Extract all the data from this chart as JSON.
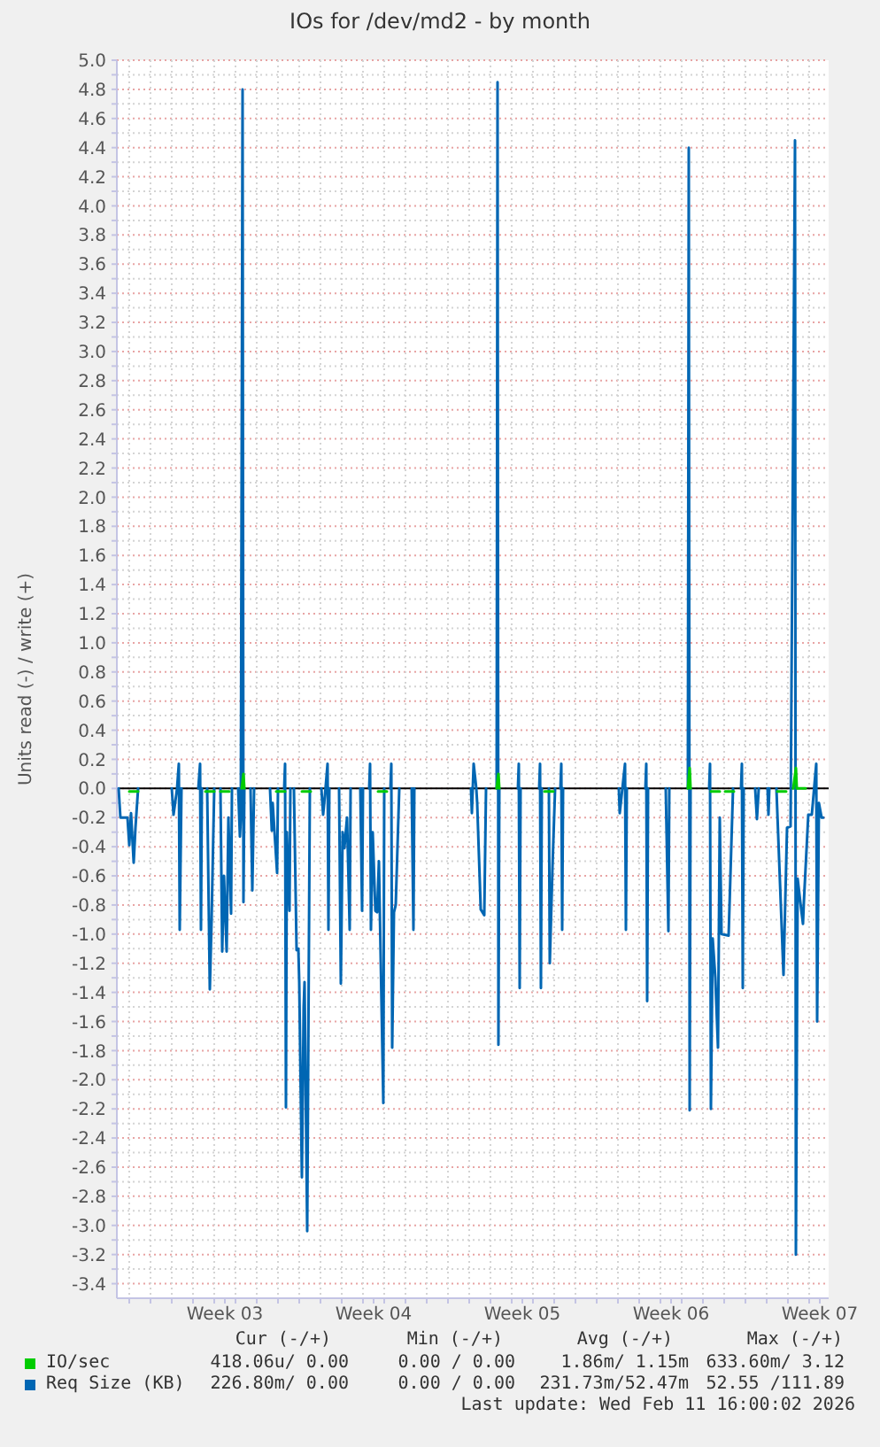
{
  "chart_data": {
    "type": "line",
    "title": "IOs for /dev/md2 - by month",
    "ylabel": "Units read (-) / write (+)",
    "xlim": [
      "2026-01-09T10:00",
      "2026-02-11T22:00"
    ],
    "xticks": [
      {
        "value": "2026-01-10T00:00",
        "label": null
      },
      {
        "value": "2026-01-11T00:00",
        "label": null
      },
      {
        "value": "2026-01-12T00:00",
        "label": null
      },
      {
        "value": "2026-01-13T00:00",
        "label": null
      },
      {
        "value": "2026-01-14T00:00",
        "label": null
      },
      {
        "value": "2026-01-14T12:00",
        "label": "Week 03"
      },
      {
        "value": "2026-01-15T00:00",
        "label": null
      },
      {
        "value": "2026-01-16T00:00",
        "label": null
      },
      {
        "value": "2026-01-17T00:00",
        "label": null
      },
      {
        "value": "2026-01-18T00:00",
        "label": null
      },
      {
        "value": "2026-01-19T00:00",
        "label": null
      },
      {
        "value": "2026-01-20T00:00",
        "label": null
      },
      {
        "value": "2026-01-21T00:00",
        "label": null
      },
      {
        "value": "2026-01-21T12:00",
        "label": "Week 04"
      },
      {
        "value": "2026-01-22T00:00",
        "label": null
      },
      {
        "value": "2026-01-23T00:00",
        "label": null
      },
      {
        "value": "2026-01-24T00:00",
        "label": null
      },
      {
        "value": "2026-01-25T00:00",
        "label": null
      },
      {
        "value": "2026-01-26T00:00",
        "label": null
      },
      {
        "value": "2026-01-27T00:00",
        "label": null
      },
      {
        "value": "2026-01-28T00:00",
        "label": null
      },
      {
        "value": "2026-01-28T12:00",
        "label": "Week 05"
      },
      {
        "value": "2026-01-29T00:00",
        "label": null
      },
      {
        "value": "2026-01-30T00:00",
        "label": null
      },
      {
        "value": "2026-01-31T00:00",
        "label": null
      },
      {
        "value": "2026-02-01T00:00",
        "label": null
      },
      {
        "value": "2026-02-02T00:00",
        "label": null
      },
      {
        "value": "2026-02-03T00:00",
        "label": null
      },
      {
        "value": "2026-02-04T00:00",
        "label": null
      },
      {
        "value": "2026-02-04T12:00",
        "label": "Week 06"
      },
      {
        "value": "2026-02-05T00:00",
        "label": null
      },
      {
        "value": "2026-02-06T00:00",
        "label": null
      },
      {
        "value": "2026-02-07T00:00",
        "label": null
      },
      {
        "value": "2026-02-08T00:00",
        "label": null
      },
      {
        "value": "2026-02-09T00:00",
        "label": null
      },
      {
        "value": "2026-02-10T00:00",
        "label": null
      },
      {
        "value": "2026-02-11T00:00",
        "label": null
      },
      {
        "value": "2026-02-11T12:00",
        "label": "Week 07"
      }
    ],
    "ylim": [
      -3.5,
      5
    ],
    "yticks": [
      -3.4,
      {
        "value": -3.3,
        "label": null
      },
      -3.2,
      {
        "value": -3.1,
        "label": null
      },
      {
        "value": -3,
        "label": "-3.0"
      },
      {
        "value": -2.9,
        "label": null
      },
      -2.8,
      {
        "value": -2.7,
        "label": null
      },
      -2.6,
      {
        "value": -2.5,
        "label": null
      },
      -2.4,
      {
        "value": -2.3,
        "label": null
      },
      -2.2,
      {
        "value": -2.1,
        "label": null
      },
      {
        "value": -2,
        "label": "-2.0"
      },
      {
        "value": -1.9,
        "label": null
      },
      -1.8,
      {
        "value": -1.7,
        "label": null
      },
      -1.6,
      {
        "value": -1.5,
        "label": null
      },
      -1.4,
      {
        "value": -1.3,
        "label": null
      },
      -1.2,
      {
        "value": -1.1,
        "label": null
      },
      {
        "value": -1,
        "label": "-1.0"
      },
      {
        "value": -0.9,
        "label": null
      },
      -0.8,
      {
        "value": -0.7,
        "label": null
      },
      -0.6,
      {
        "value": -0.5,
        "label": null
      },
      -0.4,
      {
        "value": -0.3,
        "label": null
      },
      -0.2,
      {
        "value": -0.1,
        "label": null
      },
      {
        "value": 0,
        "label": "0.0"
      },
      {
        "value": 0.1,
        "label": null
      },
      0.2,
      {
        "value": 0.3,
        "label": null
      },
      0.4,
      {
        "value": 0.5,
        "label": null
      },
      0.6,
      {
        "value": 0.7,
        "label": null
      },
      0.8,
      {
        "value": 0.9,
        "label": null
      },
      {
        "value": 1,
        "label": "1.0"
      },
      {
        "value": 1.1,
        "label": null
      },
      1.2,
      {
        "value": 1.3,
        "label": null
      },
      1.4,
      {
        "value": 1.5,
        "label": null
      },
      1.6,
      {
        "value": 1.7,
        "label": null
      },
      1.8,
      {
        "value": 1.9,
        "label": null
      },
      {
        "value": 2,
        "label": "2.0"
      },
      {
        "value": 2.1,
        "label": null
      },
      2.2,
      {
        "value": 2.3,
        "label": null
      },
      2.4,
      {
        "value": 2.5,
        "label": null
      },
      2.6,
      {
        "value": 2.7,
        "label": null
      },
      2.8,
      {
        "value": 2.9,
        "label": null
      },
      {
        "value": 3,
        "label": "3.0"
      },
      {
        "value": 3.1,
        "label": null
      },
      3.2,
      {
        "value": 3.3,
        "label": null
      },
      3.4,
      {
        "value": 3.5,
        "label": null
      },
      3.6,
      {
        "value": 3.7,
        "label": null
      },
      3.8,
      {
        "value": 3.9,
        "label": null
      },
      {
        "value": 4,
        "label": "4.0"
      },
      {
        "value": 4.1,
        "label": null
      },
      4.2,
      {
        "value": 4.3,
        "label": null
      },
      4.4,
      {
        "value": 4.5,
        "label": null
      },
      4.6,
      {
        "value": 4.7,
        "label": null
      },
      4.8,
      {
        "value": 4.9,
        "label": null
      },
      {
        "value": 5,
        "label": "5.0"
      }
    ],
    "grid": true,
    "legend": "bottom",
    "ref_lines": [
      {
        "axis": "y",
        "value": 0,
        "color": "#000000"
      }
    ],
    "series": [
      {
        "name": "IO/sec",
        "color": "#00cc00",
        "x": [
          "2026-01-10T00:00",
          "2026-01-10T10:00",
          "2026-01-11T10:00",
          "2026-01-13T14:00",
          "2026-01-14T00:00",
          "2026-01-14T02:00",
          "2026-01-14T07:00",
          "2026-01-14T17:00",
          "2026-01-15T00:00",
          "2026-01-15T07:00",
          "2026-01-15T09:00",
          "2026-01-15T10:00",
          "2026-01-16T02:00",
          "2026-01-16T22:00",
          "2026-01-17T08:00",
          "2026-01-17T18:00",
          "2026-01-18T03:00",
          "2026-01-18T13:00",
          "2026-01-19T18:00",
          "2026-01-21T17:00",
          "2026-01-22T03:00",
          "2026-01-24T18:00",
          "2026-01-27T07:00",
          "2026-01-27T09:00",
          "2026-01-27T10:00",
          "2026-01-28T12:00",
          "2026-01-29T13:00",
          "2026-01-29T23:00",
          "2026-02-02T02:00",
          "2026-02-05T07:00",
          "2026-02-05T09:00",
          "2026-02-05T10:00",
          "2026-02-05T20:00",
          "2026-02-06T09:00",
          "2026-02-06T19:00",
          "2026-02-07T00:00",
          "2026-02-07T01:00",
          "2026-02-07T11:00",
          "2026-02-08T18:00",
          "2026-02-09T12:00",
          "2026-02-09T22:00",
          "2026-02-10T02:00",
          "2026-02-10T06:00",
          "2026-02-10T09:00",
          "2026-02-10T10:00",
          "2026-02-10T20:00"
        ],
        "values": [
          -0.02,
          -0.02,
          null,
          -0.02,
          -0.02,
          null,
          -0.02,
          -0.02,
          null,
          0,
          0.1,
          0,
          null,
          -0.02,
          -0.02,
          null,
          -0.02,
          -0.02,
          null,
          -0.02,
          -0.02,
          null,
          0,
          0.1,
          0,
          null,
          -0.02,
          -0.02,
          null,
          0,
          0.14,
          0,
          null,
          -0.02,
          -0.02,
          null,
          -0.02,
          -0.02,
          null,
          -0.02,
          -0.02,
          null,
          0,
          0.14,
          0,
          0
        ]
      },
      {
        "name": "Req Size (KB)",
        "color": "#0066b3",
        "x": [
          "2026-01-09T12:00",
          "2026-01-09T14:00",
          "2026-01-09T22:00",
          "2026-01-10T00:00",
          "2026-01-10T02:00",
          "2026-01-10T05:00",
          "2026-01-10T07:00",
          "2026-01-10T10:00",
          "2026-01-11T06:00",
          "2026-01-12T00:00",
          "2026-01-12T02:00",
          "2026-01-12T06:00",
          "2026-01-12T08:00",
          "2026-01-12T09:00",
          "2026-01-12T11:00",
          "2026-01-12T16:00",
          "2026-01-13T06:00",
          "2026-01-13T08:00",
          "2026-01-13T09:00",
          "2026-01-13T10:00",
          "2026-01-13T13:00",
          "2026-01-13T16:00",
          "2026-01-13T19:00",
          "2026-01-13T21:00",
          "2026-01-14T00:00",
          "2026-01-14T04:00",
          "2026-01-14T07:00",
          "2026-01-14T09:00",
          "2026-01-14T11:00",
          "2026-01-14T14:00",
          "2026-01-14T16:00",
          "2026-01-14T19:00",
          "2026-01-14T20:00",
          "2026-01-15T00:00",
          "2026-01-15T03:00",
          "2026-01-15T05:00",
          "2026-01-15T06:00",
          "2026-01-15T08:00",
          "2026-01-15T09:00",
          "2026-01-15T10:00",
          "2026-01-15T14:00",
          "2026-01-15T17:00",
          "2026-01-15T19:00",
          "2026-01-15T21:00",
          "2026-01-16T06:00",
          "2026-01-16T15:00",
          "2026-01-16T17:00",
          "2026-01-16T18:00",
          "2026-01-16T23:00",
          "2026-01-17T00:00",
          "2026-01-17T04:00",
          "2026-01-17T07:00",
          "2026-01-17T08:00",
          "2026-01-17T09:00",
          "2026-01-17T10:00",
          "2026-01-17T13:00",
          "2026-01-17T14:00",
          "2026-01-17T16:00",
          "2026-01-17T18:00",
          "2026-01-17T21:00",
          "2026-01-17T23:00",
          "2026-01-18T00:00",
          "2026-01-18T03:00",
          "2026-01-18T05:00",
          "2026-01-18T06:00",
          "2026-01-18T09:00",
          "2026-01-18T12:00",
          "2026-01-18T18:00",
          "2026-01-19T01:00",
          "2026-01-19T03:00",
          "2026-01-19T05:00",
          "2026-01-19T08:00",
          "2026-01-19T09:00",
          "2026-01-19T10:00",
          "2026-01-19T16:00",
          "2026-01-19T21:00",
          "2026-01-19T23:00",
          "2026-01-20T01:00",
          "2026-01-20T03:00",
          "2026-01-20T06:00",
          "2026-01-20T09:00",
          "2026-01-20T10:00",
          "2026-01-20T16:00",
          "2026-01-20T21:00",
          "2026-01-20T23:00",
          "2026-01-21T00:00",
          "2026-01-21T04:00",
          "2026-01-21T07:00",
          "2026-01-21T08:00",
          "2026-01-21T09:00",
          "2026-01-21T11:00",
          "2026-01-21T14:00",
          "2026-01-21T16:00",
          "2026-01-21T18:00",
          "2026-01-21T23:00",
          "2026-01-22T00:00",
          "2026-01-22T04:00",
          "2026-01-22T07:00",
          "2026-01-22T08:00",
          "2026-01-22T09:00",
          "2026-01-22T11:00",
          "2026-01-22T13:00",
          "2026-01-22T17:00",
          "2026-01-23T00:00",
          "2026-01-23T07:00",
          "2026-01-23T09:00",
          "2026-01-23T10:00",
          "2026-01-24T18:00",
          "2026-01-26T02:00",
          "2026-01-26T03:00",
          "2026-01-26T05:00",
          "2026-01-26T08:00",
          "2026-01-26T09:00",
          "2026-01-26T13:00",
          "2026-01-26T17:00",
          "2026-01-26T19:00",
          "2026-01-27T00:00",
          "2026-01-27T07:00",
          "2026-01-27T08:00",
          "2026-01-27T09:00",
          "2026-01-27T10:00",
          "2026-01-27T20:00",
          "2026-01-28T07:00",
          "2026-01-28T08:00",
          "2026-01-28T09:00",
          "2026-01-28T10:00",
          "2026-01-28T20:00",
          "2026-01-29T07:00",
          "2026-01-29T08:00",
          "2026-01-29T09:00",
          "2026-01-29T10:00",
          "2026-01-29T14:00",
          "2026-01-29T18:00",
          "2026-01-29T19:00",
          "2026-01-29T22:00",
          "2026-01-30T01:00",
          "2026-01-30T04:00",
          "2026-01-30T07:00",
          "2026-01-30T08:00",
          "2026-01-30T09:00",
          "2026-01-30T10:00",
          "2026-01-31T10:00",
          "2026-02-02T01:00",
          "2026-02-02T02:00",
          "2026-02-02T05:00",
          "2026-02-02T08:00",
          "2026-02-02T09:00",
          "2026-02-02T10:00",
          "2026-02-02T20:00",
          "2026-02-03T07:00",
          "2026-02-03T08:00",
          "2026-02-03T09:00",
          "2026-02-03T10:00",
          "2026-02-03T18:00",
          "2026-02-04T06:00",
          "2026-02-04T09:00",
          "2026-02-04T10:00",
          "2026-02-04T20:00",
          "2026-02-05T07:00",
          "2026-02-05T08:00",
          "2026-02-05T09:00",
          "2026-02-05T10:00",
          "2026-02-05T20:00",
          "2026-02-06T07:00",
          "2026-02-06T08:00",
          "2026-02-06T09:00",
          "2026-02-06T11:00",
          "2026-02-06T14:00",
          "2026-02-06T17:00",
          "2026-02-06T19:00",
          "2026-02-06T21:00",
          "2026-02-07T05:00",
          "2026-02-07T10:00",
          "2026-02-07T14:00",
          "2026-02-07T19:00",
          "2026-02-07T20:00",
          "2026-02-07T21:00",
          "2026-02-07T22:00",
          "2026-02-08T04:00",
          "2026-02-08T11:00",
          "2026-02-08T13:00",
          "2026-02-08T15:00",
          "2026-02-08T20:00",
          "2026-02-09T01:00",
          "2026-02-09T02:00",
          "2026-02-09T03:00",
          "2026-02-09T07:00",
          "2026-02-09T11:00",
          "2026-02-09T19:00",
          "2026-02-09T23:00",
          "2026-02-10T03:00",
          "2026-02-10T08:00",
          "2026-02-10T09:00",
          "2026-02-10T11:00",
          "2026-02-10T14:00",
          "2026-02-10T17:00",
          "2026-02-10T18:00",
          "2026-02-10T23:00",
          "2026-02-11T03:00",
          "2026-02-11T08:00",
          "2026-02-11T09:00",
          "2026-02-11T11:00",
          "2026-02-11T14:00",
          "2026-02-11T16:00"
        ],
        "values": [
          0,
          -0.2,
          -0.2,
          -0.39,
          -0.17,
          -0.51,
          -0.27,
          0,
          null,
          0,
          -0.18,
          0,
          0.17,
          -0.97,
          0,
          null,
          0,
          0.17,
          -0.97,
          0,
          null,
          0,
          -1.38,
          -0.9,
          0,
          null,
          0,
          -1.12,
          -0.6,
          -1.12,
          -0.2,
          -0.86,
          0,
          null,
          0,
          -0.33,
          -0.2,
          4.8,
          -0.78,
          0,
          null,
          0,
          -0.7,
          0,
          null,
          0,
          -0.29,
          -0.1,
          -0.58,
          0,
          null,
          0,
          0.17,
          -2.19,
          -0.3,
          -0.84,
          0,
          null,
          0,
          -1.11,
          -1.1,
          -1.33,
          -2.67,
          -1.5,
          -1.33,
          -3.04,
          0,
          null,
          0,
          -0.18,
          -0.05,
          0.17,
          -0.97,
          0,
          null,
          0,
          -1.34,
          -0.3,
          -0.41,
          -0.2,
          -0.97,
          0,
          null,
          0,
          -0.84,
          0,
          null,
          0,
          0.17,
          -0.97,
          -0.3,
          -0.84,
          -0.85,
          -0.5,
          -2.16,
          0,
          null,
          0,
          0.17,
          -1.78,
          -0.85,
          -0.8,
          0,
          null,
          0,
          -0.97,
          0,
          null,
          0,
          -0.17,
          0.17,
          0,
          -0.1,
          -0.83,
          -0.87,
          0,
          null,
          0,
          4.85,
          -1.76,
          0,
          null,
          0,
          0.17,
          -1.37,
          0,
          null,
          0,
          0.17,
          -1.37,
          0,
          null,
          0,
          -1.2,
          -0.55,
          0,
          null,
          0,
          0.17,
          -0.97,
          0,
          null,
          0,
          -0.17,
          0,
          0.17,
          -0.97,
          0,
          null,
          0,
          0.17,
          -1.46,
          0,
          null,
          0,
          -0.98,
          0,
          null,
          0,
          4.4,
          -2.21,
          0,
          null,
          0,
          0.17,
          -2.2,
          -1.03,
          -1.3,
          -1.78,
          -0.2,
          -1.0,
          -1.01,
          0,
          null,
          0,
          0.17,
          -1.37,
          0,
          null,
          0,
          -0.21,
          0,
          null,
          0,
          -0.18,
          0,
          null,
          0,
          -1.28,
          -0.27,
          -0.26,
          4.45,
          -3.2,
          -0.62,
          -0.78,
          -0.93,
          -0.78,
          -0.18,
          -0.18,
          0.17,
          -1.6,
          -0.1,
          -0.2,
          -0.2
        ]
      }
    ],
    "annotations": [
      "Cur (-/+)",
      "Min (-/+)",
      "Avg (-/+)",
      "Max (-/+)",
      "418.06u/ 0.00",
      "0.00 / 0.00",
      "1.86m/ 1.15m",
      "633.60m/ 3.12",
      "226.80m/ 0.00",
      "0.00 / 0.00",
      "231.73m/52.47m",
      "52.55 /111.89",
      "Last update: Wed Feb 11 16:00:02 2026"
    ]
  }
}
